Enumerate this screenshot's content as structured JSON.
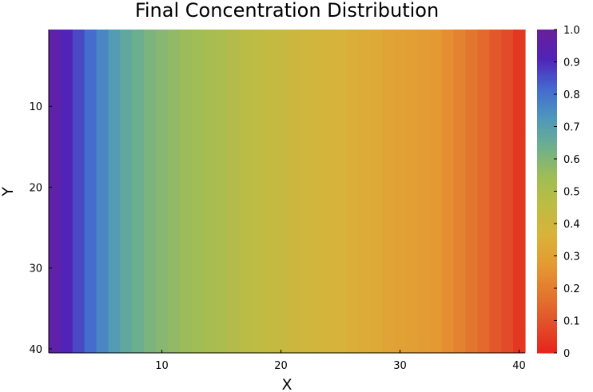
{
  "chart_data": {
    "type": "heatmap",
    "title": "Final Concentration Distribution",
    "xlabel": "X",
    "ylabel": "Y",
    "x_range": [
      1,
      40
    ],
    "y_range": [
      1,
      40
    ],
    "y_inverted": true,
    "x_ticks": [
      "10",
      "20",
      "30",
      "40"
    ],
    "y_ticks": [
      "10",
      "20",
      "30",
      "40"
    ],
    "colorbar": {
      "range": [
        0,
        1
      ],
      "ticks": [
        "0",
        "0.1",
        "0.2",
        "0.3",
        "0.4",
        "0.5",
        "0.6",
        "0.7",
        "0.8",
        "0.9",
        "1.0"
      ],
      "colormap": [
        "#e6241c",
        "#e2502a",
        "#e3772f",
        "#e49a32",
        "#d9b23a",
        "#bfbc42",
        "#9fbd56",
        "#6db08c",
        "#4e97bd",
        "#4469d0",
        "#5123b8",
        "#6a1f99"
      ]
    },
    "column_values": [
      0.96,
      0.91,
      0.86,
      0.81,
      0.76,
      0.71,
      0.67,
      0.64,
      0.61,
      0.59,
      0.57,
      0.55,
      0.54,
      0.52,
      0.51,
      0.49,
      0.47,
      0.46,
      0.44,
      0.43,
      0.41,
      0.4,
      0.39,
      0.38,
      0.37,
      0.35,
      0.34,
      0.33,
      0.31,
      0.3,
      0.29,
      0.28,
      0.27,
      0.24,
      0.21,
      0.18,
      0.15,
      0.11,
      0.08,
      0.04
    ],
    "grid": false
  }
}
